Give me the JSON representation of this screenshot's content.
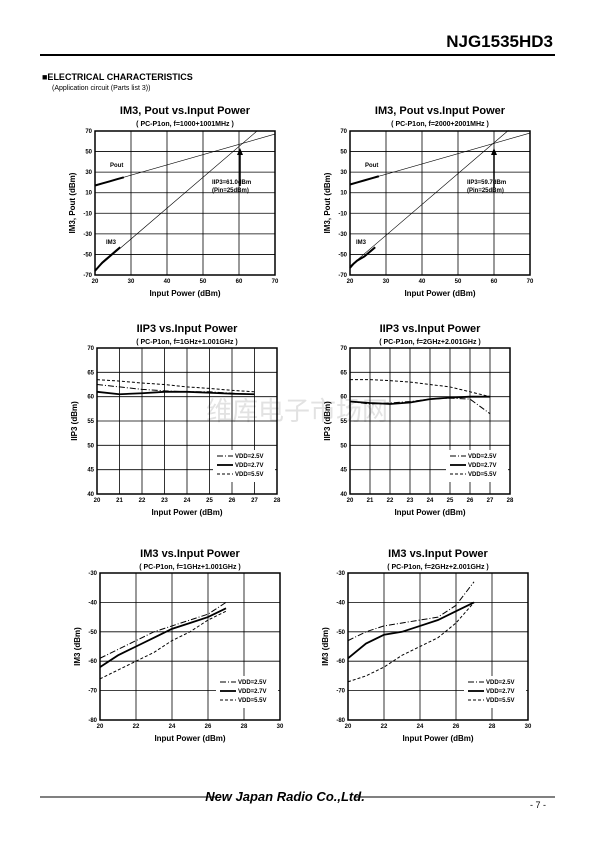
{
  "header": {
    "part": "NJG1535HD3",
    "section": "■ELECTRICAL CHARACTERISTICS",
    "note": "(Application circuit (Parts list 3))"
  },
  "watermark": "维库电子市场网",
  "footer": {
    "company": "New Japan Radio Co.,Ltd.",
    "page": "- 7 -"
  },
  "chart_data": [
    {
      "type": "line",
      "title": "IM3, Pout vs.Input Power",
      "subtitle": "( PC-P1on, f=1000+1001MHz )",
      "x_label": "Input Power (dBm)",
      "y_label": "IM3, Pout (dBm)",
      "xlim": [
        20,
        70
      ],
      "xticks": [
        20,
        30,
        40,
        50,
        60,
        70
      ],
      "ylim": [
        -70,
        70
      ],
      "yticks": [
        -70,
        -50,
        -30,
        -10,
        10,
        30,
        50,
        70
      ],
      "grid": true,
      "series": [
        {
          "name": "Pout",
          "color": "#000",
          "style": "solid",
          "width": 2,
          "x": [
            20,
            22,
            24,
            26,
            28
          ],
          "values": [
            17,
            19,
            21,
            23,
            25
          ]
        },
        {
          "color": "#000",
          "style": "solid",
          "width": 0.6,
          "x": [
            20,
            70
          ],
          "values": [
            17,
            67
          ]
        },
        {
          "name": "IM3",
          "color": "#000",
          "style": "solid",
          "width": 2,
          "x": [
            20,
            21,
            22,
            23,
            24,
            25,
            26,
            27
          ],
          "values": [
            -66,
            -62,
            -58,
            -55,
            -52,
            -49,
            -46,
            -43
          ]
        },
        {
          "color": "#000",
          "style": "solid",
          "width": 0.6,
          "x": [
            20,
            65
          ],
          "values": [
            -65,
            70
          ]
        }
      ],
      "annotations": [
        "IIP3=61.0dBm",
        "(Pin=25dBm)"
      ]
    },
    {
      "type": "line",
      "title": "IM3, Pout vs.Input Power",
      "subtitle": "( PC-P1on, f=2000+2001MHz )",
      "x_label": "Input Power (dBm)",
      "y_label": "IM3, Pout (dBm)",
      "xlim": [
        20,
        70
      ],
      "xticks": [
        20,
        30,
        40,
        50,
        60,
        70
      ],
      "ylim": [
        -70,
        70
      ],
      "yticks": [
        -70,
        -50,
        -30,
        -10,
        10,
        30,
        50,
        70
      ],
      "grid": true,
      "series": [
        {
          "name": "Pout",
          "color": "#000",
          "style": "solid",
          "width": 2,
          "x": [
            20,
            22,
            24,
            26,
            28
          ],
          "values": [
            18,
            20,
            22,
            24,
            26
          ]
        },
        {
          "color": "#000",
          "style": "solid",
          "width": 0.6,
          "x": [
            20,
            70
          ],
          "values": [
            18,
            68
          ]
        },
        {
          "name": "IM3",
          "color": "#000",
          "style": "solid",
          "width": 2,
          "x": [
            20,
            21,
            22,
            23,
            24,
            25,
            26,
            27
          ],
          "values": [
            -63,
            -59,
            -56,
            -54,
            -52,
            -49,
            -46,
            -43
          ]
        },
        {
          "color": "#000",
          "style": "solid",
          "width": 0.6,
          "x": [
            20,
            64
          ],
          "values": [
            -61.4,
            70.6
          ]
        }
      ],
      "annotations": [
        "IIP3=59.7dBm",
        "(Pin=25dBm)"
      ]
    },
    {
      "type": "line",
      "title": "IIP3 vs.Input Power",
      "subtitle": "( PC-P1on, f=1GHz+1.001GHz )",
      "x_label": "Input Power (dBm)",
      "y_label": "IIP3 (dBm)",
      "xlim": [
        20,
        28
      ],
      "xticks": [
        20,
        21,
        22,
        23,
        24,
        25,
        26,
        27,
        28
      ],
      "ylim": [
        40,
        70
      ],
      "yticks": [
        40,
        45,
        50,
        55,
        60,
        65,
        70
      ],
      "grid": true,
      "legend": "lower-right",
      "series": [
        {
          "name": "VDD=2.5V",
          "color": "#000",
          "style": "dashdot",
          "width": 1,
          "x": [
            20,
            21,
            22,
            23,
            24,
            25,
            26,
            27
          ],
          "values": [
            62.5,
            62,
            61.5,
            61.2,
            61,
            61,
            60.7,
            60.5
          ]
        },
        {
          "name": "VDD=2.7V",
          "color": "#000",
          "style": "solid",
          "width": 1.8,
          "x": [
            20,
            21,
            22,
            23,
            24,
            25,
            26,
            27
          ],
          "values": [
            61,
            60.5,
            60.7,
            61,
            61,
            60.8,
            60.6,
            60.5
          ]
        },
        {
          "name": "VDD=5.5V",
          "color": "#000",
          "style": "dashed",
          "width": 1,
          "x": [
            20,
            21,
            22,
            23,
            24,
            25,
            26,
            27
          ],
          "values": [
            63.5,
            63.2,
            62.8,
            62.5,
            62,
            61.7,
            61.3,
            61
          ]
        }
      ]
    },
    {
      "type": "line",
      "title": "IIP3 vs.Input Power",
      "subtitle": "( PC-P1on, f=2GHz+2.001GHz )",
      "x_label": "Input Power (dBm)",
      "y_label": "IIP3 (dBm)",
      "xlim": [
        20,
        28
      ],
      "xticks": [
        20,
        21,
        22,
        23,
        24,
        25,
        26,
        27,
        28
      ],
      "ylim": [
        40,
        70
      ],
      "yticks": [
        40,
        45,
        50,
        55,
        60,
        65,
        70
      ],
      "grid": true,
      "legend": "lower-right",
      "series": [
        {
          "name": "VDD=2.5V",
          "color": "#000",
          "style": "dashdot",
          "width": 1,
          "x": [
            20,
            21,
            22,
            23,
            24,
            25,
            26,
            27
          ],
          "values": [
            59,
            58.5,
            58.7,
            59,
            59.5,
            59.7,
            59.5,
            56.5
          ]
        },
        {
          "name": "VDD=2.7V",
          "color": "#000",
          "style": "solid",
          "width": 1.8,
          "x": [
            20,
            21,
            22,
            23,
            24,
            25,
            26,
            27
          ],
          "values": [
            59,
            58.7,
            58.5,
            58.8,
            59.5,
            59.8,
            60,
            60
          ]
        },
        {
          "name": "VDD=5.5V",
          "color": "#000",
          "style": "dashed",
          "width": 1,
          "x": [
            20,
            21,
            22,
            23,
            24,
            25,
            26,
            27
          ],
          "values": [
            63.5,
            63.5,
            63.3,
            63,
            62.5,
            62,
            61,
            60
          ]
        }
      ]
    },
    {
      "type": "line",
      "title": "IM3 vs.Input Power",
      "subtitle": "( PC-P1on, f=1GHz+1.001GHz )",
      "x_label": "Input Power (dBm)",
      "y_label": "IM3 (dBm)",
      "xlim": [
        20,
        30
      ],
      "xticks": [
        20,
        22,
        24,
        26,
        28,
        30
      ],
      "ylim": [
        -80,
        -30
      ],
      "yticks": [
        -80,
        -70,
        -60,
        -50,
        -40,
        -30
      ],
      "grid": true,
      "legend": "lower-right",
      "series": [
        {
          "name": "VDD=2.5V",
          "color": "#000",
          "style": "dashdot",
          "width": 1,
          "x": [
            20,
            21,
            22,
            23,
            24,
            25,
            26,
            27
          ],
          "values": [
            -59,
            -56,
            -53,
            -50,
            -48,
            -46,
            -44,
            -40
          ]
        },
        {
          "name": "VDD=2.7V",
          "color": "#000",
          "style": "solid",
          "width": 1.8,
          "x": [
            20,
            21,
            22,
            23,
            24,
            25,
            26,
            27
          ],
          "values": [
            -62,
            -58,
            -55,
            -52,
            -49,
            -47,
            -45,
            -42
          ]
        },
        {
          "name": "VDD=5.5V",
          "color": "#000",
          "style": "dashed",
          "width": 1,
          "x": [
            20,
            21,
            22,
            23,
            24,
            25,
            26,
            27
          ],
          "values": [
            -66,
            -63,
            -60,
            -57,
            -53,
            -50,
            -46,
            -43
          ]
        }
      ]
    },
    {
      "type": "line",
      "title": "IM3 vs.Input Power",
      "subtitle": "( PC-P1on, f=2GHz+2.001GHz )",
      "x_label": "Input Power (dBm)",
      "y_label": "IM3 (dBm)",
      "xlim": [
        20,
        30
      ],
      "xticks": [
        20,
        22,
        24,
        26,
        28,
        30
      ],
      "ylim": [
        -80,
        -30
      ],
      "yticks": [
        -80,
        -70,
        -60,
        -50,
        -40,
        -30
      ],
      "grid": true,
      "legend": "lower-right",
      "series": [
        {
          "name": "VDD=2.5V",
          "color": "#000",
          "style": "dashdot",
          "width": 1,
          "x": [
            20,
            21,
            22,
            23,
            24,
            25,
            26,
            27
          ],
          "values": [
            -53,
            -50,
            -48,
            -47,
            -46,
            -45,
            -41,
            -33
          ]
        },
        {
          "name": "VDD=2.7V",
          "color": "#000",
          "style": "solid",
          "width": 1.8,
          "x": [
            20,
            21,
            22,
            23,
            24,
            25,
            26,
            27
          ],
          "values": [
            -59,
            -54,
            -51,
            -50,
            -48,
            -46,
            -43,
            -40
          ]
        },
        {
          "name": "VDD=5.5V",
          "color": "#000",
          "style": "dashed",
          "width": 1,
          "x": [
            20,
            21,
            22,
            23,
            24,
            25,
            26,
            27
          ],
          "values": [
            -67,
            -65,
            -62,
            -58,
            -55,
            -52,
            -47,
            -40
          ]
        }
      ]
    }
  ]
}
